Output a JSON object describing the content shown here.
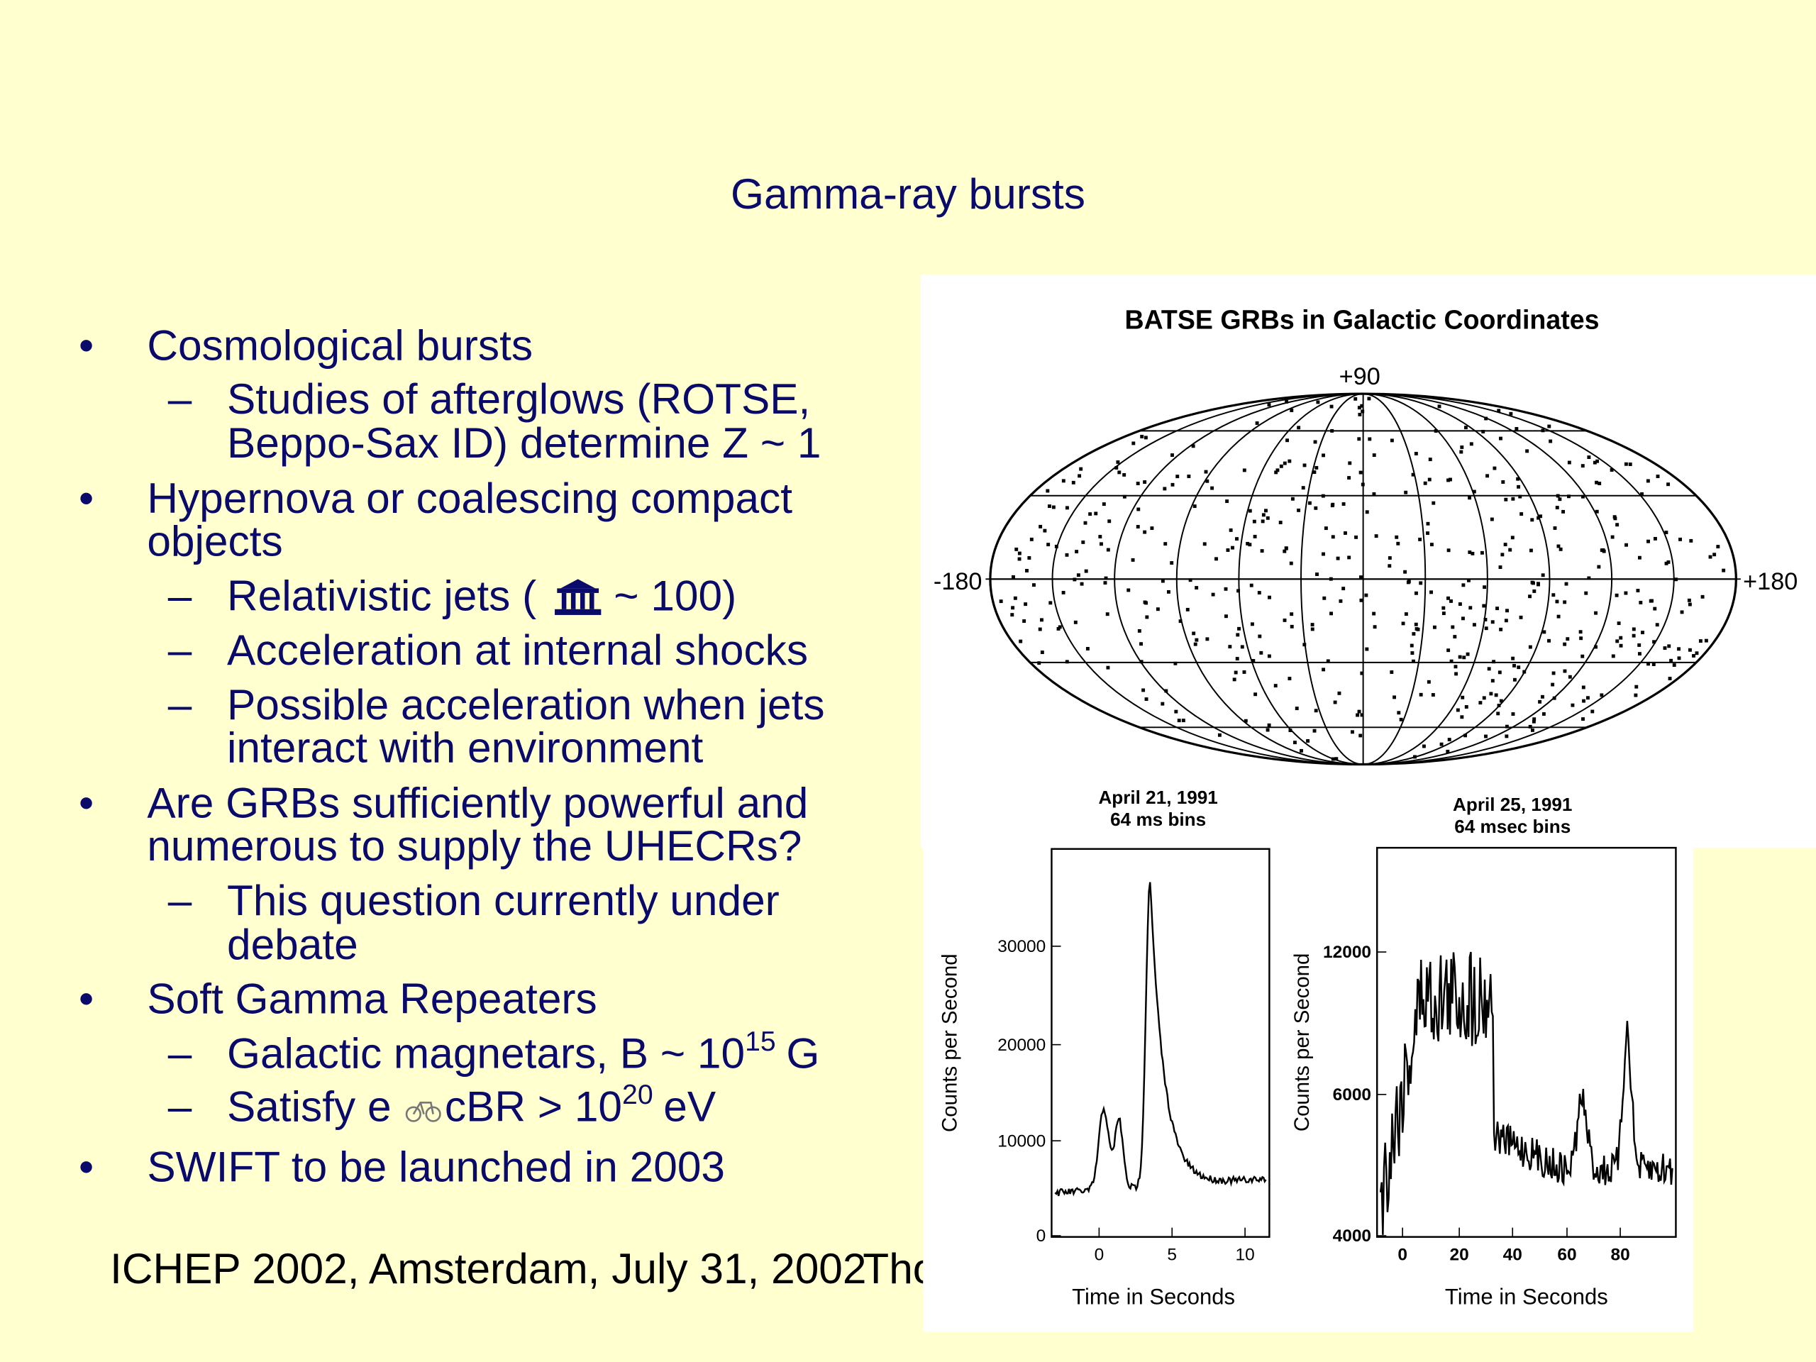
{
  "title": "Gamma-ray bursts",
  "bullets": [
    {
      "lines": [
        "Cosmological bursts"
      ],
      "sub": [
        {
          "lines": [
            "Studies of afterglows (ROTSE,",
            "Beppo-Sax ID) determine Z ~ 1"
          ]
        }
      ]
    },
    {
      "lines": [
        "Hypernova or coalescing compact",
        "objects"
      ],
      "sub": [
        {
          "before": "Relativistic jets (",
          "after": "~ 100)"
        },
        {
          "lines": [
            "Acceleration at internal shocks"
          ]
        },
        {
          "lines": [
            "Possible acceleration when jets",
            "interact with environment"
          ]
        }
      ]
    },
    {
      "lines": [
        "Are GRBs sufficiently powerful and",
        "numerous to supply the UHECRs?"
      ],
      "sub": [
        {
          "lines": [
            "This question currently under",
            "debate"
          ]
        }
      ]
    },
    {
      "lines": [
        "Soft Gamma Repeaters"
      ],
      "sub": [
        {
          "before": "Galactic magnetars, B ~ 10",
          "sup": "15",
          "after": "G"
        },
        {
          "before": "Satisfy e",
          "middle": "cBR > 10",
          "sup": "20",
          "after": "eV"
        }
      ]
    },
    {
      "lines": [
        "SWIFT to be launched in 2003"
      ]
    }
  ],
  "footer": {
    "left": "ICHEP 2002, Amsterdam, July 31, 2002",
    "right": "Tho"
  },
  "figure": {
    "map": {
      "title": "BATSE GRBs in Galactic Coordinates",
      "top": "+90",
      "left": "-180",
      "right": "+180"
    },
    "curves": [
      {
        "date": "April 21, 1991",
        "bins": "64 ms bins",
        "ylabel": "Counts per Second",
        "xlabel": "Time in Seconds",
        "yticks": [
          "30000",
          "20000",
          "10000",
          "0"
        ],
        "xticks": [
          "0",
          "5",
          "10"
        ]
      },
      {
        "date": "April 25, 1991",
        "bins": "64 msec bins",
        "ylabel": "Counts per Second",
        "xlabel": "Time in Seconds",
        "yticks": [
          "12000",
          "6000",
          "4000"
        ],
        "xticks": [
          "0",
          "20",
          "40",
          "60",
          "80"
        ]
      }
    ]
  }
}
